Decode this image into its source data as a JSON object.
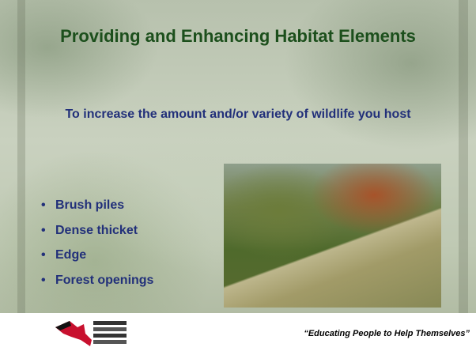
{
  "slide": {
    "title": "Providing and Enhancing Habitat Elements",
    "subtitle": "To increase the amount and/or variety of wildlife you host",
    "bullets": [
      "Brush piles",
      "Dense thicket",
      "Edge",
      "Forest openings"
    ],
    "footer_quote": "“Educating People to Help Themselves”"
  }
}
